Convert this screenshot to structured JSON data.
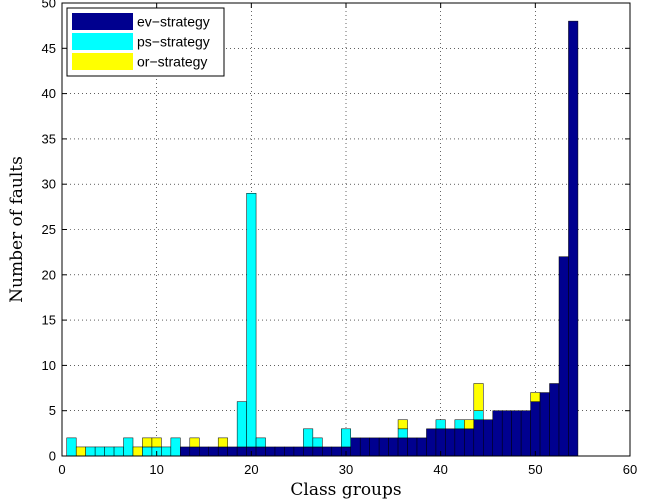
{
  "chart_data": {
    "type": "bar",
    "stacked": true,
    "xlabel": "Class groups",
    "ylabel": "Number of faults",
    "xlim": [
      0,
      60
    ],
    "ylim": [
      0,
      50
    ],
    "xticks": [
      0,
      10,
      20,
      30,
      40,
      50,
      60
    ],
    "yticks": [
      0,
      5,
      10,
      15,
      20,
      25,
      30,
      35,
      40,
      45,
      50
    ],
    "grid": true,
    "legend_position": "top-left",
    "x": [
      1,
      2,
      3,
      4,
      5,
      6,
      7,
      8,
      9,
      10,
      11,
      12,
      13,
      14,
      15,
      16,
      17,
      18,
      19,
      20,
      21,
      22,
      23,
      24,
      25,
      26,
      27,
      28,
      29,
      30,
      31,
      32,
      33,
      34,
      35,
      36,
      37,
      38,
      39,
      40,
      41,
      42,
      43,
      44,
      45,
      46,
      47,
      48,
      49,
      50,
      51,
      52,
      53,
      54
    ],
    "series": [
      {
        "name": "ev−strategy",
        "color": "#00008f",
        "values": [
          0,
          0,
          0,
          0,
          0,
          0,
          0,
          0,
          0,
          0,
          0,
          0,
          1,
          1,
          1,
          1,
          1,
          1,
          1,
          1,
          1,
          1,
          1,
          1,
          1,
          1,
          1,
          1,
          1,
          1,
          2,
          2,
          2,
          2,
          2,
          2,
          2,
          2,
          3,
          3,
          3,
          3,
          3,
          4,
          4,
          5,
          5,
          5,
          5,
          6,
          7,
          8,
          22,
          48
        ]
      },
      {
        "name": "ps−strategy",
        "color": "#00ffff",
        "values": [
          2,
          0,
          1,
          1,
          1,
          1,
          2,
          0,
          1,
          1,
          1,
          2,
          0,
          0,
          0,
          0,
          0,
          0,
          5,
          28,
          1,
          0,
          0,
          0,
          0,
          2,
          1,
          0,
          0,
          2,
          0,
          0,
          0,
          0,
          0,
          1,
          0,
          0,
          0,
          1,
          0,
          1,
          0,
          1,
          0,
          0,
          0,
          0,
          0,
          0,
          0,
          0,
          0,
          0
        ]
      },
      {
        "name": "or−strategy",
        "color": "#ffff00",
        "values": [
          0,
          1,
          0,
          0,
          0,
          0,
          0,
          1,
          1,
          1,
          0,
          0,
          0,
          1,
          0,
          0,
          1,
          0,
          0,
          0,
          0,
          0,
          0,
          0,
          0,
          0,
          0,
          0,
          0,
          0,
          0,
          0,
          0,
          0,
          0,
          1,
          0,
          0,
          0,
          0,
          0,
          0,
          1,
          3,
          0,
          0,
          0,
          0,
          0,
          1,
          0,
          0,
          0,
          0
        ]
      }
    ]
  }
}
